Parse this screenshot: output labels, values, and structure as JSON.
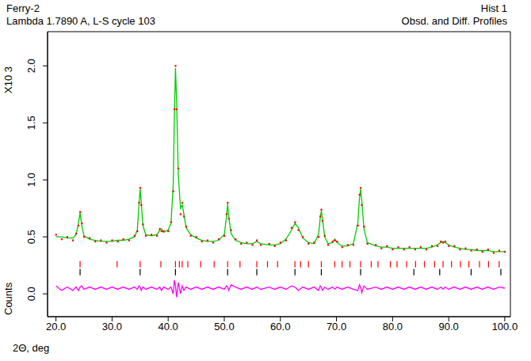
{
  "chart_data": {
    "type": "line",
    "title": "Ferry-2",
    "subtitle": "Lambda 1.7890 A, L-S cycle 103",
    "annotations": [
      "Hist 1",
      "Obsd. and Diff. Profiles"
    ],
    "x_label": "2Θ, deg",
    "y_label": "Counts",
    "y_scale_label": "X10 3",
    "grid": false,
    "xlim": [
      18.5,
      101.0
    ],
    "xticks": [
      {
        "value": 20,
        "label": "20.0"
      },
      {
        "value": 30,
        "label": "30.0"
      },
      {
        "value": 40,
        "label": "40.0"
      },
      {
        "value": 50,
        "label": "50.0"
      },
      {
        "value": 60,
        "label": "60.0"
      },
      {
        "value": 70,
        "label": "70.0"
      },
      {
        "value": 80,
        "label": "80.0"
      },
      {
        "value": 90,
        "label": "90.0"
      },
      {
        "value": 100,
        "label": "100.0"
      }
    ],
    "ylim": [
      -0.2,
      2.3
    ],
    "yticks": [
      {
        "value": 0,
        "label": "0.0"
      },
      {
        "value": 0.5,
        "label": "0.5"
      },
      {
        "value": 1,
        "label": "1.0"
      },
      {
        "value": 1.5,
        "label": "1.5"
      },
      {
        "value": 2,
        "label": "2.0"
      }
    ],
    "series": [
      {
        "type": "scatter",
        "marker": "dot",
        "color": "#ff0000",
        "x": [
          20,
          21,
          22,
          23,
          23.6,
          24.0,
          24.3,
          24.6,
          25.0,
          26,
          27,
          28,
          29,
          30,
          31,
          32,
          33,
          34,
          34.5,
          34.8,
          35.0,
          35.2,
          35.5,
          36,
          37,
          38,
          38.5,
          38.8,
          39.2,
          40,
          40.5,
          40.9,
          41.1,
          41.3,
          41.5,
          41.8,
          42.2,
          42.5,
          42.8,
          43.2,
          44,
          45,
          46,
          47,
          48,
          49,
          50,
          50.4,
          50.6,
          50.8,
          51.2,
          52,
          53,
          54,
          55,
          55.8,
          56.5,
          58,
          59,
          60,
          61,
          62,
          62.6,
          63.2,
          64,
          65,
          66,
          66.8,
          67.1,
          67.3,
          67.5,
          67.9,
          68.5,
          69.3,
          69.7,
          70.1,
          71,
          72,
          73,
          73.8,
          74.1,
          74.3,
          74.5,
          74.9,
          75.5,
          77,
          78,
          79,
          80,
          81,
          82,
          83,
          84,
          85,
          86,
          87,
          88,
          88.6,
          89,
          89.4,
          90,
          91,
          92,
          93,
          94,
          95,
          96,
          97,
          98,
          99,
          100
        ],
        "values": [
          0.52,
          0.48,
          0.5,
          0.47,
          0.53,
          0.6,
          0.72,
          0.62,
          0.5,
          0.49,
          0.46,
          0.47,
          0.45,
          0.47,
          0.46,
          0.48,
          0.47,
          0.51,
          0.55,
          0.8,
          0.93,
          0.78,
          0.61,
          0.51,
          0.52,
          0.51,
          0.57,
          0.55,
          0.55,
          0.55,
          0.63,
          0.9,
          1.62,
          2.0,
          1.62,
          1.1,
          0.7,
          0.8,
          0.68,
          0.59,
          0.51,
          0.5,
          0.46,
          0.47,
          0.45,
          0.48,
          0.51,
          0.7,
          0.8,
          0.66,
          0.56,
          0.48,
          0.44,
          0.45,
          0.43,
          0.47,
          0.43,
          0.44,
          0.42,
          0.45,
          0.47,
          0.58,
          0.63,
          0.56,
          0.5,
          0.44,
          0.45,
          0.5,
          0.68,
          0.74,
          0.64,
          0.51,
          0.43,
          0.46,
          0.47,
          0.46,
          0.41,
          0.43,
          0.43,
          0.6,
          0.87,
          0.93,
          0.78,
          0.59,
          0.44,
          0.43,
          0.4,
          0.42,
          0.39,
          0.41,
          0.39,
          0.41,
          0.39,
          0.41,
          0.39,
          0.42,
          0.42,
          0.46,
          0.45,
          0.46,
          0.42,
          0.42,
          0.39,
          0.4,
          0.38,
          0.39,
          0.37,
          0.39,
          0.36,
          0.38,
          0.37
        ]
      },
      {
        "type": "line",
        "line_style": "solid",
        "color": "#00cc00",
        "x": [
          20,
          21,
          22,
          23,
          23.6,
          24.0,
          24.3,
          24.6,
          25.0,
          26,
          27,
          28,
          29,
          30,
          31,
          32,
          33,
          34,
          34.5,
          34.8,
          35.0,
          35.2,
          35.5,
          36,
          37,
          38,
          38.5,
          38.8,
          39.2,
          40,
          40.5,
          40.9,
          41.1,
          41.3,
          41.5,
          41.8,
          42.2,
          42.5,
          42.8,
          43.2,
          44,
          45,
          46,
          47,
          48,
          49,
          50,
          50.4,
          50.6,
          50.8,
          51.2,
          52,
          53,
          54,
          55,
          55.8,
          56.5,
          58,
          59,
          60,
          61,
          62,
          62.6,
          63.2,
          64,
          65,
          66,
          66.8,
          67.1,
          67.3,
          67.5,
          67.9,
          68.5,
          69.3,
          69.7,
          70.1,
          71,
          72,
          73,
          73.8,
          74.1,
          74.3,
          74.5,
          74.9,
          75.5,
          77,
          78,
          79,
          80,
          81,
          82,
          83,
          84,
          85,
          86,
          87,
          88,
          88.6,
          89,
          89.4,
          90,
          91,
          92,
          93,
          94,
          95,
          96,
          97,
          98,
          99,
          100
        ],
        "values": [
          0.5,
          0.5,
          0.49,
          0.49,
          0.52,
          0.62,
          0.71,
          0.6,
          0.51,
          0.48,
          0.47,
          0.46,
          0.46,
          0.46,
          0.47,
          0.47,
          0.48,
          0.5,
          0.56,
          0.78,
          0.92,
          0.8,
          0.6,
          0.52,
          0.51,
          0.52,
          0.56,
          0.57,
          0.54,
          0.56,
          0.62,
          0.95,
          1.55,
          1.98,
          1.7,
          1.05,
          0.75,
          0.78,
          0.7,
          0.58,
          0.52,
          0.49,
          0.47,
          0.46,
          0.46,
          0.47,
          0.52,
          0.68,
          0.79,
          0.68,
          0.53,
          0.47,
          0.45,
          0.44,
          0.44,
          0.46,
          0.44,
          0.43,
          0.43,
          0.44,
          0.48,
          0.56,
          0.62,
          0.58,
          0.49,
          0.45,
          0.44,
          0.52,
          0.66,
          0.73,
          0.66,
          0.5,
          0.44,
          0.45,
          0.48,
          0.45,
          0.42,
          0.42,
          0.44,
          0.62,
          0.84,
          0.92,
          0.82,
          0.57,
          0.45,
          0.42,
          0.41,
          0.41,
          0.4,
          0.4,
          0.4,
          0.4,
          0.4,
          0.4,
          0.4,
          0.41,
          0.43,
          0.45,
          0.46,
          0.45,
          0.43,
          0.41,
          0.4,
          0.39,
          0.39,
          0.38,
          0.38,
          0.38,
          0.37,
          0.37,
          0.37
        ]
      },
      {
        "type": "line",
        "line_style": "solid",
        "color": "#ff00ff",
        "x": [
          20,
          21,
          22,
          23,
          23.6,
          24.0,
          24.3,
          24.6,
          25.0,
          26,
          27,
          28,
          29,
          30,
          31,
          32,
          33,
          34,
          34.5,
          34.8,
          35.0,
          35.2,
          35.5,
          36,
          37,
          38,
          38.5,
          38.8,
          39.2,
          40,
          40.5,
          40.9,
          41.1,
          41.3,
          41.5,
          41.8,
          42.2,
          42.5,
          42.8,
          43.2,
          44,
          45,
          46,
          47,
          48,
          49,
          50,
          50.4,
          50.6,
          50.8,
          51.2,
          52,
          53,
          54,
          55,
          55.8,
          56.5,
          58,
          59,
          60,
          61,
          62,
          62.6,
          63.2,
          64,
          65,
          66,
          66.8,
          67.1,
          67.3,
          67.5,
          67.9,
          68.5,
          69.3,
          69.7,
          70.1,
          71,
          72,
          73,
          73.8,
          74.1,
          74.3,
          74.5,
          74.9,
          75.5,
          77,
          78,
          79,
          80,
          81,
          82,
          83,
          84,
          85,
          86,
          87,
          88,
          88.6,
          89,
          89.4,
          90,
          91,
          92,
          93,
          94,
          95,
          96,
          97,
          98,
          99,
          100
        ],
        "values": [
          0.07,
          0.03,
          0.06,
          0.03,
          0.06,
          0.03,
          0.06,
          0.07,
          0.04,
          0.06,
          0.04,
          0.06,
          0.04,
          0.06,
          0.04,
          0.06,
          0.04,
          0.06,
          0.04,
          0.07,
          0.06,
          0.03,
          0.06,
          0.04,
          0.06,
          0.04,
          0.06,
          0.03,
          0.06,
          0.04,
          0.06,
          0.0,
          0.12,
          0.07,
          -0.03,
          0.1,
          0.0,
          0.07,
          0.03,
          0.06,
          0.04,
          0.06,
          0.04,
          0.06,
          0.04,
          0.06,
          0.04,
          0.07,
          0.06,
          0.03,
          0.08,
          0.06,
          0.04,
          0.06,
          0.04,
          0.06,
          0.04,
          0.06,
          0.04,
          0.06,
          0.04,
          0.07,
          0.06,
          0.03,
          0.06,
          0.04,
          0.06,
          0.03,
          0.07,
          0.06,
          0.03,
          0.06,
          0.04,
          0.06,
          0.04,
          0.06,
          0.04,
          0.06,
          0.04,
          0.03,
          0.08,
          0.06,
          0.01,
          0.07,
          0.04,
          0.06,
          0.04,
          0.06,
          0.04,
          0.06,
          0.04,
          0.06,
          0.04,
          0.06,
          0.04,
          0.06,
          0.04,
          0.06,
          0.04,
          0.06,
          0.04,
          0.06,
          0.04,
          0.06,
          0.04,
          0.06,
          0.04,
          0.06,
          0.04,
          0.06,
          0.05
        ]
      },
      {
        "type": "scatter",
        "marker": "vline",
        "color": "#ff0000",
        "x": [
          24.3,
          30.9,
          35.0,
          38.7,
          41.3,
          42.0,
          42.5,
          43.5,
          45.8,
          48.2,
          50.6,
          52.8,
          55.8,
          57.7,
          59.5,
          62.6,
          63.6,
          65.0,
          67.3,
          69.7,
          71.0,
          72.4,
          74.3,
          76.2,
          77.4,
          79.6,
          80.8,
          82.5,
          84.1,
          85.7,
          87.5,
          89.0,
          90.5,
          92.1,
          93.6,
          95.5,
          97.1,
          99.0
        ],
        "values": [
          0.26,
          0.26,
          0.26,
          0.26,
          0.26,
          0.26,
          0.26,
          0.26,
          0.26,
          0.26,
          0.26,
          0.26,
          0.26,
          0.26,
          0.26,
          0.26,
          0.26,
          0.26,
          0.26,
          0.26,
          0.26,
          0.26,
          0.26,
          0.26,
          0.26,
          0.26,
          0.26,
          0.26,
          0.26,
          0.26,
          0.26,
          0.26,
          0.26,
          0.26,
          0.26,
          0.26,
          0.26,
          0.26
        ]
      },
      {
        "type": "scatter",
        "marker": "vline",
        "color": "#000000",
        "x": [
          24.3,
          35.0,
          41.3,
          50.6,
          55.8,
          62.6,
          67.3,
          74.3,
          83.8,
          88.4,
          94.0,
          99.3
        ],
        "values": [
          0.19,
          0.19,
          0.19,
          0.19,
          0.19,
          0.19,
          0.19,
          0.19,
          0.19,
          0.19,
          0.19,
          0.19
        ]
      }
    ]
  }
}
